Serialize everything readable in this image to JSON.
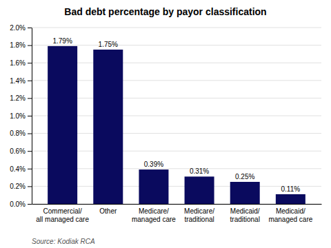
{
  "chart_data": {
    "type": "bar",
    "title": "Bad debt percentage by payor classification",
    "categories": [
      "Commercial/\nall managed care",
      "Other",
      "Medicare/\nmanaged care",
      "Medicare/\ntraditional",
      "Medicaid/\ntraditional",
      "Medicaid/\nmanaged care"
    ],
    "values": [
      1.79,
      1.75,
      0.39,
      0.31,
      0.25,
      0.11
    ],
    "value_labels": [
      "1.79%",
      "1.75%",
      "0.39%",
      "0.31%",
      "0.25%",
      "0.11%"
    ],
    "data_labels": true,
    "color": "#0a0a5e",
    "ylim": [
      0,
      2.0
    ],
    "yticks": [
      {
        "value": 0.0,
        "label": "0.0%"
      },
      {
        "value": 0.2,
        "label": "0.2%"
      },
      {
        "value": 0.4,
        "label": "0.4%"
      },
      {
        "value": 0.6,
        "label": "0.6%"
      },
      {
        "value": 0.8,
        "label": "0.8%"
      },
      {
        "value": 1.0,
        "label": "1.0%"
      },
      {
        "value": 1.2,
        "label": "1.2%"
      },
      {
        "value": 1.4,
        "label": "1.4%"
      },
      {
        "value": 1.6,
        "label": "1.6%"
      },
      {
        "value": 1.8,
        "label": "1.8%"
      },
      {
        "value": 2.0,
        "label": "2.0%"
      }
    ],
    "grid": true,
    "annotations": [
      "Source: Kodiak RCA"
    ]
  }
}
